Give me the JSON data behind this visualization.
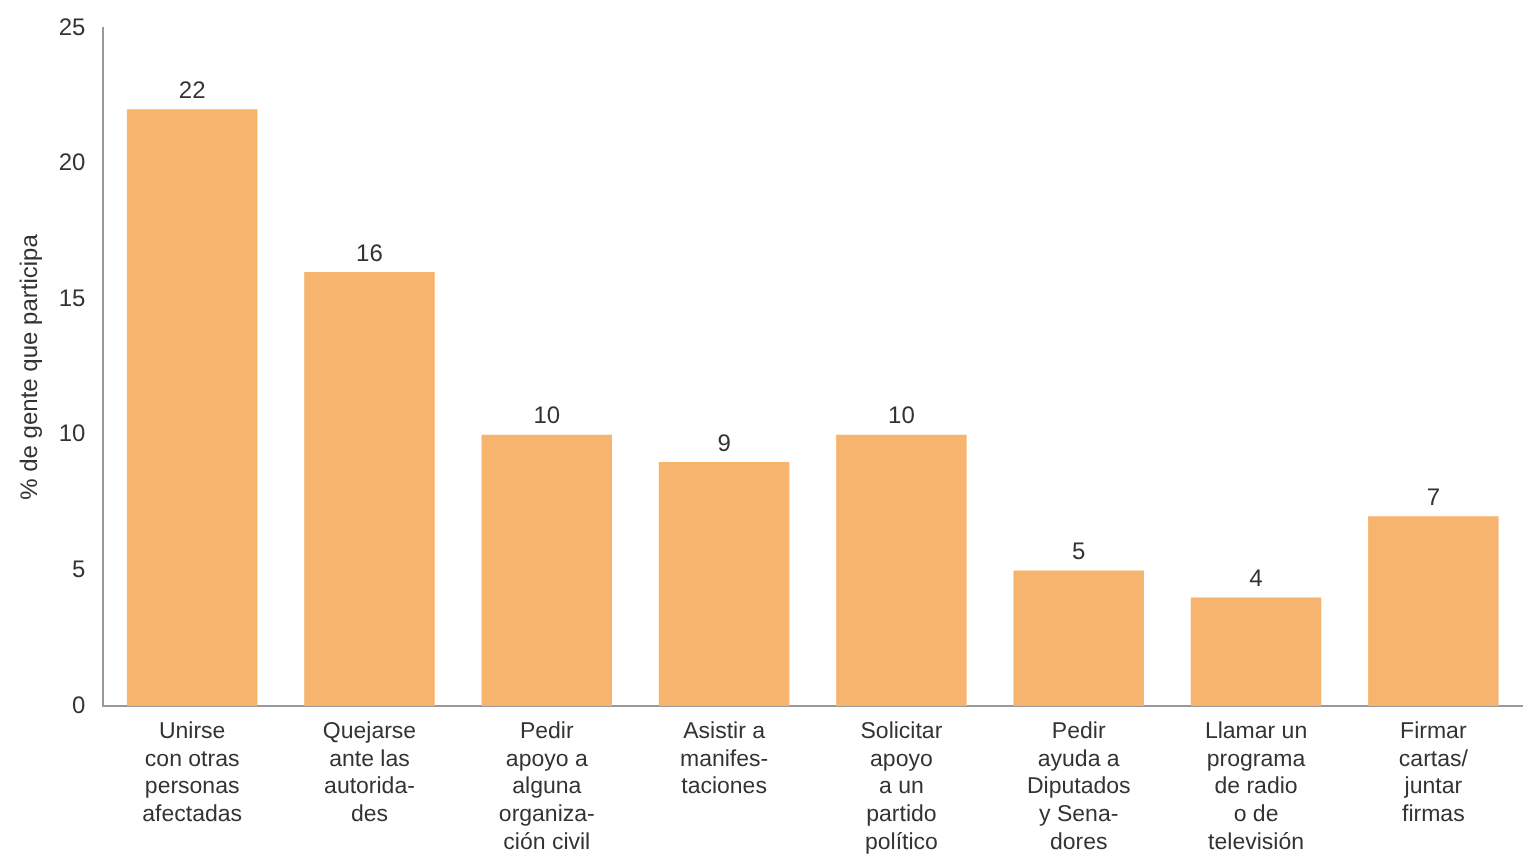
{
  "chart_data": {
    "type": "bar",
    "ylabel": "% de gente que participa",
    "categories": [
      "Unirse\ncon otras\npersonas\nafectadas",
      "Quejarse\nante las\nautorida-\ndes",
      "Pedir\napoyo a\nalguna\norganiza-\nción civil",
      "Asistir a\nmanifes-\ntaciones",
      "Solicitar\napoyo\na un\npartido\npolítico",
      "Pedir\nayuda a\nDiputados\ny Sena-\ndores",
      "Llamar un\nprograma\nde radio\no de\ntelevisión",
      "Firmar\ncartas/\njuntar\nfirmas"
    ],
    "values": [
      22,
      16,
      10,
      9,
      10,
      5,
      4,
      7
    ],
    "color": "#f7b46e",
    "ylim": [
      0,
      25
    ],
    "yticks": [
      0,
      5,
      10,
      15,
      20,
      25
    ],
    "data_labels": true,
    "grid": false,
    "legend": false
  }
}
